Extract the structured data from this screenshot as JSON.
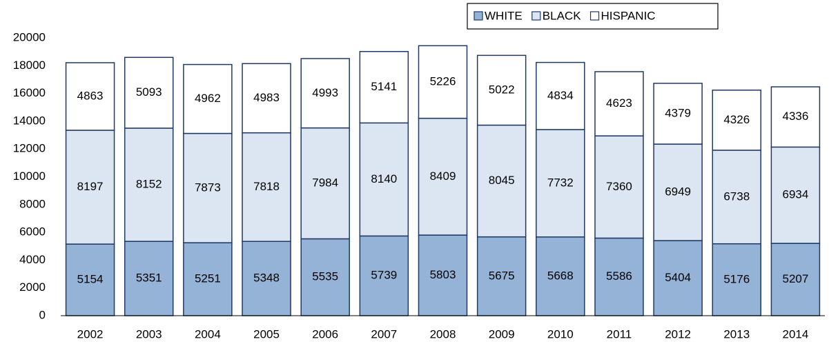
{
  "chart_data": {
    "type": "stacked_bar",
    "categories": [
      "2002",
      "2003",
      "2004",
      "2005",
      "2006",
      "2007",
      "2008",
      "2009",
      "2010",
      "2011",
      "2012",
      "2013",
      "2014"
    ],
    "series": [
      {
        "name": "WHITE",
        "color": "#95b3d7",
        "values": [
          5154,
          5351,
          5251,
          5348,
          5535,
          5739,
          5803,
          5675,
          5668,
          5586,
          5404,
          5176,
          5207
        ]
      },
      {
        "name": "BLACK",
        "color": "#dce6f2",
        "values": [
          8197,
          8152,
          7873,
          7818,
          7984,
          8140,
          8409,
          8045,
          7732,
          7360,
          6949,
          6738,
          6934
        ]
      },
      {
        "name": "HISPANIC",
        "color": "#ffffff",
        "values": [
          4863,
          5093,
          4962,
          4983,
          4993,
          5141,
          5226,
          5022,
          4834,
          4623,
          4379,
          4326,
          4336
        ]
      }
    ],
    "ylim": [
      0,
      20000
    ],
    "yticks": [
      0,
      2000,
      4000,
      6000,
      8000,
      10000,
      12000,
      14000,
      16000,
      18000,
      20000
    ],
    "grid": false,
    "legend": "top-right"
  }
}
